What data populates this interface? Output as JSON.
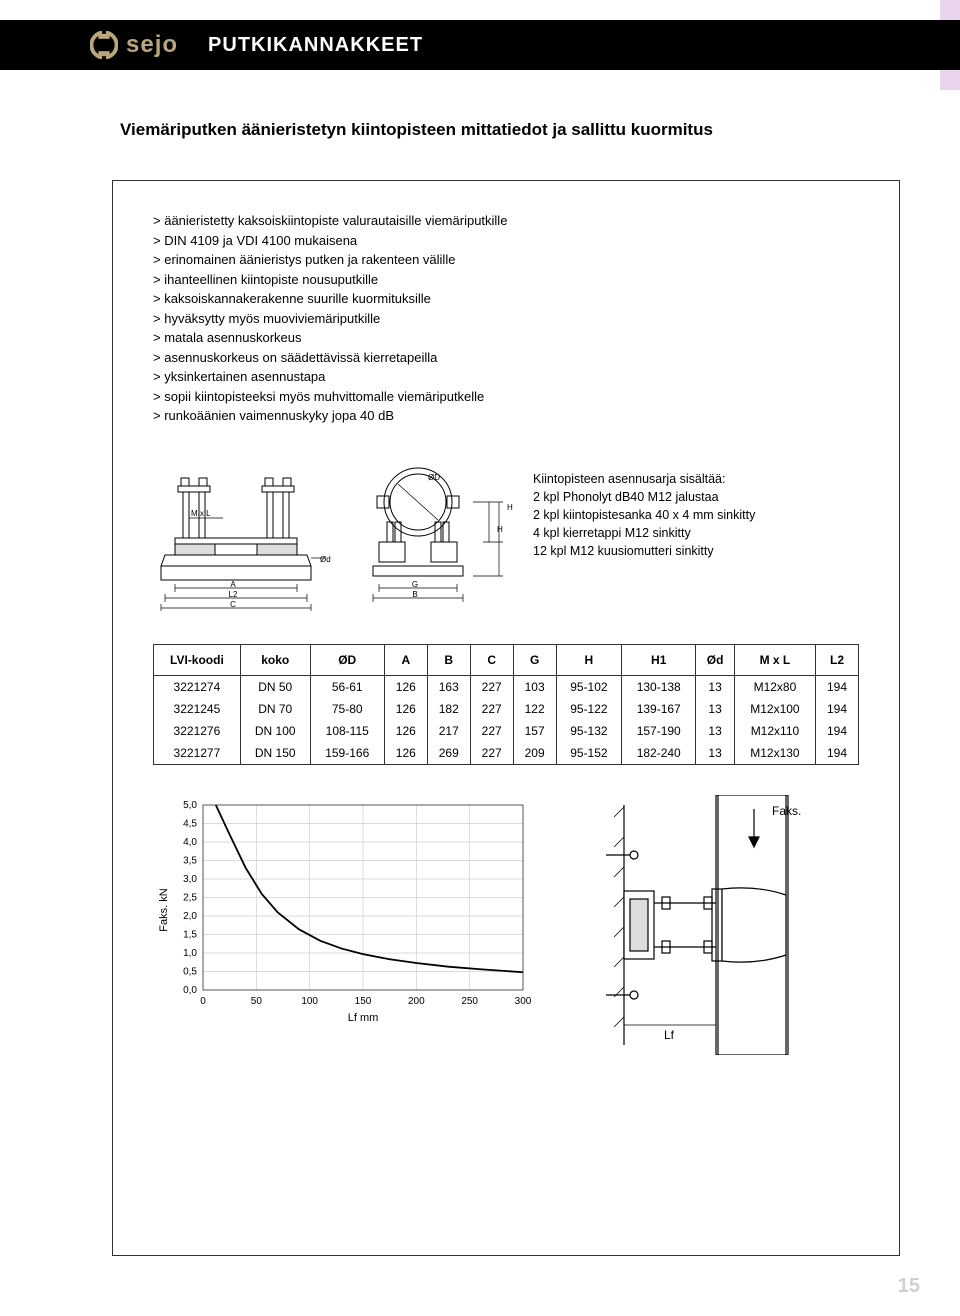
{
  "topbar": {
    "logo_text": "sejo",
    "title": "PUTKIKANNAKKEET"
  },
  "page_title": "Viemäriputken äänieristetyn kiintopisteen mittatiedot ja sallittu kuormitus",
  "bullets": [
    "äänieristetty kaksoiskiintopiste valurautaisille viemäriputkille",
    "DIN 4109 ja VDI 4100 mukaisena",
    "erinomainen äänieristys putken ja rakenteen välille",
    "ihanteellinen kiintopiste nousuputkille",
    "kaksoiskannakerakenne suurille kuormituksille",
    "hyväksytty myös muoviviemäriputkille",
    "matala asennuskorkeus",
    "asennuskorkeus on säädettävissä kierretapeilla",
    "yksinkertainen asennustapa",
    "sopii kiintopisteeksi myös muhvittomalle viemäriputkelle",
    "runkoäänien vaimennuskyky jopa 40 dB"
  ],
  "install_heading": "Kiintopisteen asennusarja sisältää:",
  "install_lines": [
    "2 kpl Phonolyt dB40 M12 jalustaa",
    "2 kpl kiintopistesanka 40 x 4 mm sinkitty",
    "4 kpl kierretappi M12 sinkitty",
    "12 kpl M12 kuusiomutteri sinkitty"
  ],
  "table": {
    "columns": [
      "LVI-koodi",
      "koko",
      "ØD",
      "A",
      "B",
      "C",
      "G",
      "H",
      "H1",
      "Ød",
      "M x L",
      "L2"
    ],
    "rows": [
      [
        "3221274",
        "DN 50",
        "56-61",
        "126",
        "163",
        "227",
        "103",
        "95-102",
        "130-138",
        "13",
        "M12x80",
        "194"
      ],
      [
        "3221245",
        "DN 70",
        "75-80",
        "126",
        "182",
        "227",
        "122",
        "95-122",
        "139-167",
        "13",
        "M12x100",
        "194"
      ],
      [
        "3221276",
        "DN 100",
        "108-115",
        "126",
        "217",
        "227",
        "157",
        "95-132",
        "157-190",
        "13",
        "M12x110",
        "194"
      ],
      [
        "3221277",
        "DN 150",
        "159-166",
        "126",
        "269",
        "227",
        "209",
        "95-152",
        "182-240",
        "13",
        "M12x130",
        "194"
      ]
    ],
    "header_fontsize": 12,
    "body_fontsize": 12
  },
  "chart": {
    "type": "line",
    "ylabel": "Faks. kN",
    "xlabel": "Lf  mm",
    "yticks": [
      "0,0",
      "0,5",
      "1,0",
      "1,5",
      "2,0",
      "2,5",
      "3,0",
      "3,5",
      "4,0",
      "4,5",
      "5,0"
    ],
    "xticks": [
      0,
      50,
      100,
      150,
      200,
      250,
      300
    ],
    "points": [
      [
        12,
        5.0
      ],
      [
        25,
        4.2
      ],
      [
        40,
        3.3
      ],
      [
        55,
        2.6
      ],
      [
        70,
        2.1
      ],
      [
        90,
        1.64
      ],
      [
        110,
        1.33
      ],
      [
        130,
        1.12
      ],
      [
        150,
        0.97
      ],
      [
        175,
        0.83
      ],
      [
        200,
        0.73
      ],
      [
        230,
        0.63
      ],
      [
        260,
        0.56
      ],
      [
        300,
        0.48
      ]
    ],
    "line_color": "#000000",
    "line_width": 1.8,
    "grid_color": "#cfcfcf",
    "background_color": "#ffffff",
    "tick_fontsize": 10,
    "label_fontsize": 11,
    "xlim": [
      0,
      300
    ],
    "ylim": [
      0,
      5
    ]
  },
  "diagram_labels": {
    "Od": "Ød",
    "MxL": "M x L",
    "OD": "ØD",
    "H": "H",
    "H1": "H1",
    "G": "G",
    "B": "B",
    "A": "A",
    "L2": "L2",
    "C": "C"
  },
  "bottom_diagram": {
    "Faks": "Faks.",
    "Lf": "Lf"
  },
  "page_number": "15"
}
